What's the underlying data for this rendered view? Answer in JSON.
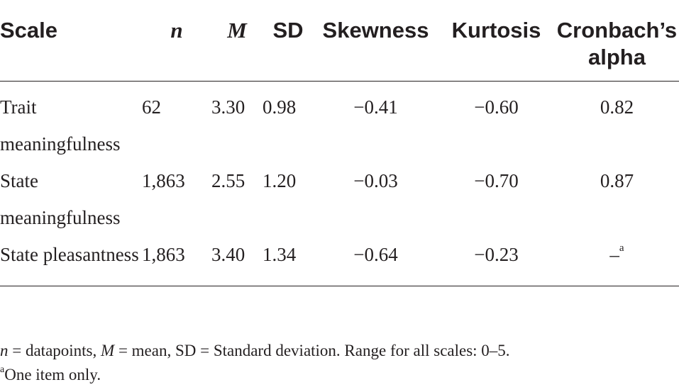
{
  "table": {
    "headers": {
      "scale": "Scale",
      "n": "n",
      "m": "M",
      "sd": "SD",
      "skewness": "Skewness",
      "kurtosis": "Kurtosis",
      "alpha": "Cronbach’s alpha"
    },
    "rows": [
      {
        "scale": "Trait meaningfulness",
        "n": "62",
        "m": "3.30",
        "sd": "0.98",
        "skewness": "−0.41",
        "kurtosis": "−0.60",
        "alpha": "0.82",
        "alpha_sup": ""
      },
      {
        "scale": "State meaningfulness",
        "n": "1,863",
        "m": "2.55",
        "sd": "1.20",
        "skewness": "−0.03",
        "kurtosis": "−0.70",
        "alpha": "0.87",
        "alpha_sup": ""
      },
      {
        "scale": "State pleasantness",
        "n": "1,863",
        "m": "3.40",
        "sd": "1.34",
        "skewness": "−0.64",
        "kurtosis": "−0.23",
        "alpha": "–",
        "alpha_sup": "a"
      }
    ]
  },
  "notes": {
    "line1_n": "n",
    "line1_a": " = datapoints, ",
    "line1_m": "M",
    "line1_b": " = mean, SD = Standard deviation. Range for all scales: 0–5.",
    "line2_sup": "a",
    "line2": "One item only."
  }
}
